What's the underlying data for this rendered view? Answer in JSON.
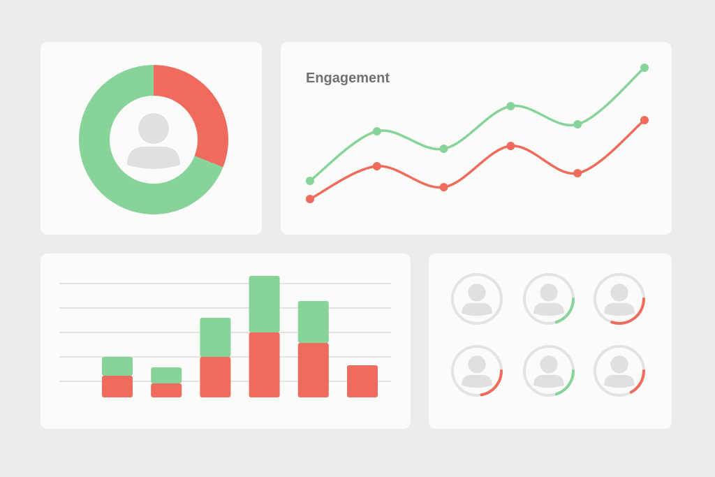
{
  "chart_data": [
    {
      "type": "pie",
      "values": [
        31,
        69
      ],
      "colors": [
        "#ee6b5e",
        "#88d39a"
      ],
      "donut": true
    },
    {
      "type": "line",
      "title": "Engagement",
      "categories": [
        null,
        null,
        null,
        null,
        null,
        null
      ],
      "series": [
        {
          "color": "#88d39a",
          "values": [
            41,
            112,
            87,
            148,
            122,
            203
          ]
        },
        {
          "color": "#ee6b5e",
          "values": [
            15,
            62,
            32,
            91,
            52,
            128
          ]
        }
      ]
    },
    {
      "type": "bar",
      "stacked": true,
      "categories": [
        null,
        null,
        null,
        null,
        null,
        null
      ],
      "series": [
        {
          "color": "#ee6b5e",
          "values": [
            31,
            20,
            58,
            93,
            78,
            46
          ]
        },
        {
          "color": "#88d39a",
          "values": [
            27,
            23,
            56,
            81,
            60,
            0
          ]
        }
      ],
      "ylim": [
        0,
        175
      ],
      "yticks": [
        23,
        58,
        93,
        128,
        163
      ],
      "grid": true
    },
    {
      "type": "progress_rings",
      "values": [
        0,
        20,
        30,
        22,
        20,
        17
      ],
      "colors": [
        "#88d39a",
        "#88d39a",
        "#ee6b5e",
        "#ee6b5e",
        "#88d39a",
        "#ee6b5e"
      ]
    }
  ]
}
